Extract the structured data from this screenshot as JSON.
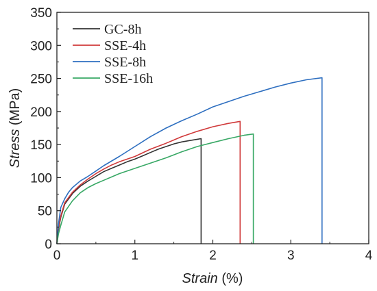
{
  "chart_data": {
    "type": "line",
    "xlabel": {
      "italic": "Strain",
      "unit": " (%)"
    },
    "ylabel": {
      "italic": "Stress",
      "unit": " (MPa)"
    },
    "xlim": [
      0,
      4
    ],
    "ylim": [
      0,
      350
    ],
    "xticks": [
      0,
      1,
      2,
      3,
      4
    ],
    "yticks": [
      0,
      50,
      100,
      150,
      200,
      250,
      300,
      350
    ],
    "grid": false,
    "legend_position": "top-left",
    "series": [
      {
        "name": "GC-8h",
        "color": "#333333",
        "x": [
          0,
          0.02,
          0.05,
          0.1,
          0.2,
          0.3,
          0.4,
          0.5,
          0.6,
          0.7,
          0.8,
          0.9,
          1.0,
          1.1,
          1.2,
          1.3,
          1.4,
          1.5,
          1.6,
          1.7,
          1.8,
          1.85,
          1.85
        ],
        "y": [
          0,
          22,
          40,
          60,
          76,
          87,
          95,
          102,
          109,
          114,
          119,
          124,
          128,
          133,
          138,
          143,
          147,
          151,
          154,
          156,
          158,
          159,
          0
        ]
      },
      {
        "name": "SSE-4h",
        "color": "#d0393a",
        "x": [
          0,
          0.02,
          0.05,
          0.1,
          0.2,
          0.3,
          0.4,
          0.5,
          0.6,
          0.7,
          0.8,
          0.9,
          1.0,
          1.2,
          1.4,
          1.6,
          1.8,
          2.0,
          2.2,
          2.35,
          2.35
        ],
        "y": [
          0,
          24,
          42,
          62,
          78,
          89,
          98,
          106,
          113,
          119,
          124,
          128,
          132,
          143,
          152,
          162,
          170,
          177,
          182,
          185,
          0
        ]
      },
      {
        "name": "SSE-8h",
        "color": "#2e6fc0",
        "x": [
          0,
          0.02,
          0.05,
          0.1,
          0.15,
          0.2,
          0.3,
          0.4,
          0.5,
          0.6,
          0.8,
          1.0,
          1.2,
          1.4,
          1.6,
          1.8,
          2.0,
          2.2,
          2.4,
          2.6,
          2.8,
          3.0,
          3.2,
          3.4,
          3.4
        ],
        "y": [
          0,
          30,
          55,
          68,
          78,
          85,
          95,
          102,
          110,
          118,
          132,
          147,
          162,
          175,
          186,
          196,
          207,
          215,
          223,
          230,
          237,
          243,
          248,
          251,
          0
        ]
      },
      {
        "name": "SSE-16h",
        "color": "#38a865",
        "x": [
          0,
          0.02,
          0.05,
          0.1,
          0.2,
          0.3,
          0.4,
          0.5,
          0.6,
          0.7,
          0.8,
          0.9,
          1.0,
          1.2,
          1.4,
          1.6,
          1.8,
          2.0,
          2.2,
          2.4,
          2.52,
          2.52
        ],
        "y": [
          0,
          15,
          28,
          48,
          65,
          77,
          85,
          91,
          96,
          101,
          106,
          110,
          114,
          122,
          130,
          139,
          147,
          153,
          159,
          164,
          166,
          0
        ]
      }
    ]
  }
}
